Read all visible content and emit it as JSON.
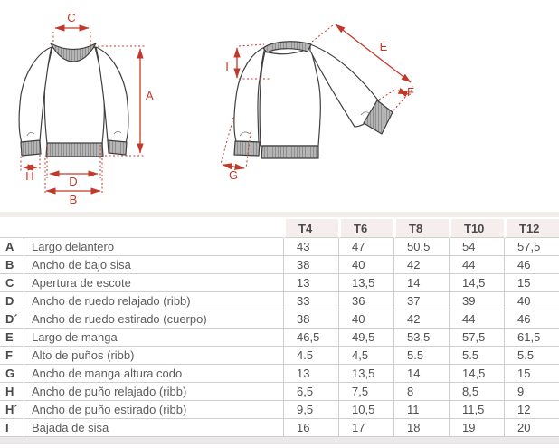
{
  "page": {
    "background": "#ffffff"
  },
  "diagram": {
    "front": {
      "letters": {
        "C": "C",
        "A": "A",
        "H": "H",
        "D": "D",
        "B": "B"
      }
    },
    "back": {
      "letters": {
        "I": "I",
        "E": "E",
        "F": "F",
        "G": "G"
      }
    },
    "colors": {
      "annotation_red": "#c2392b",
      "garment_outline": "#3f3f3f",
      "rib_fill": "#b5b5b5"
    }
  },
  "table": {
    "columns": [
      "T4",
      "T6",
      "T8",
      "T10",
      "T12"
    ],
    "header_bg": "#f6eded",
    "rows": [
      {
        "letter": "A",
        "label": "Largo delantero",
        "values": [
          "43",
          "47",
          "50,5",
          "54",
          "57,5"
        ]
      },
      {
        "letter": "B",
        "label": "Ancho de bajo sisa",
        "values": [
          "38",
          "40",
          "42",
          "44",
          "46"
        ]
      },
      {
        "letter": "C",
        "label": "Apertura de escote",
        "values": [
          "13",
          "13,5",
          "14",
          "14,5",
          "15"
        ]
      },
      {
        "letter": "D",
        "label": "Ancho de ruedo relajado (ribb)",
        "values": [
          "33",
          "36",
          "37",
          "39",
          "40"
        ]
      },
      {
        "letter": "D´",
        "label": "Ancho de ruedo estirado (cuerpo)",
        "values": [
          "38",
          "40",
          "42",
          "44",
          "46"
        ]
      },
      {
        "letter": "E",
        "label": "Largo de manga",
        "values": [
          "46,5",
          "49,5",
          "53,5",
          "57,5",
          "61,5"
        ]
      },
      {
        "letter": "F",
        "label": "Alto de puños (ribb)",
        "values": [
          "4.5",
          "4,5",
          "5.5",
          "5.5",
          "5.5"
        ]
      },
      {
        "letter": "G",
        "label": "Ancho de manga altura codo",
        "values": [
          "13",
          "13,5",
          "14",
          "14,5",
          "15"
        ]
      },
      {
        "letter": "H",
        "label": "Ancho de puño relajado (ribb)",
        "values": [
          "6,5",
          "7,5",
          "8",
          "8,5",
          "9"
        ]
      },
      {
        "letter": "H´",
        "label": "Ancho de puño estirado (ribb)",
        "values": [
          "9,5",
          "10,5",
          "11",
          "11,5",
          "12"
        ]
      },
      {
        "letter": "I",
        "label": "Bajada de sisa",
        "values": [
          "16",
          "17",
          "18",
          "19",
          "20"
        ]
      }
    ]
  }
}
